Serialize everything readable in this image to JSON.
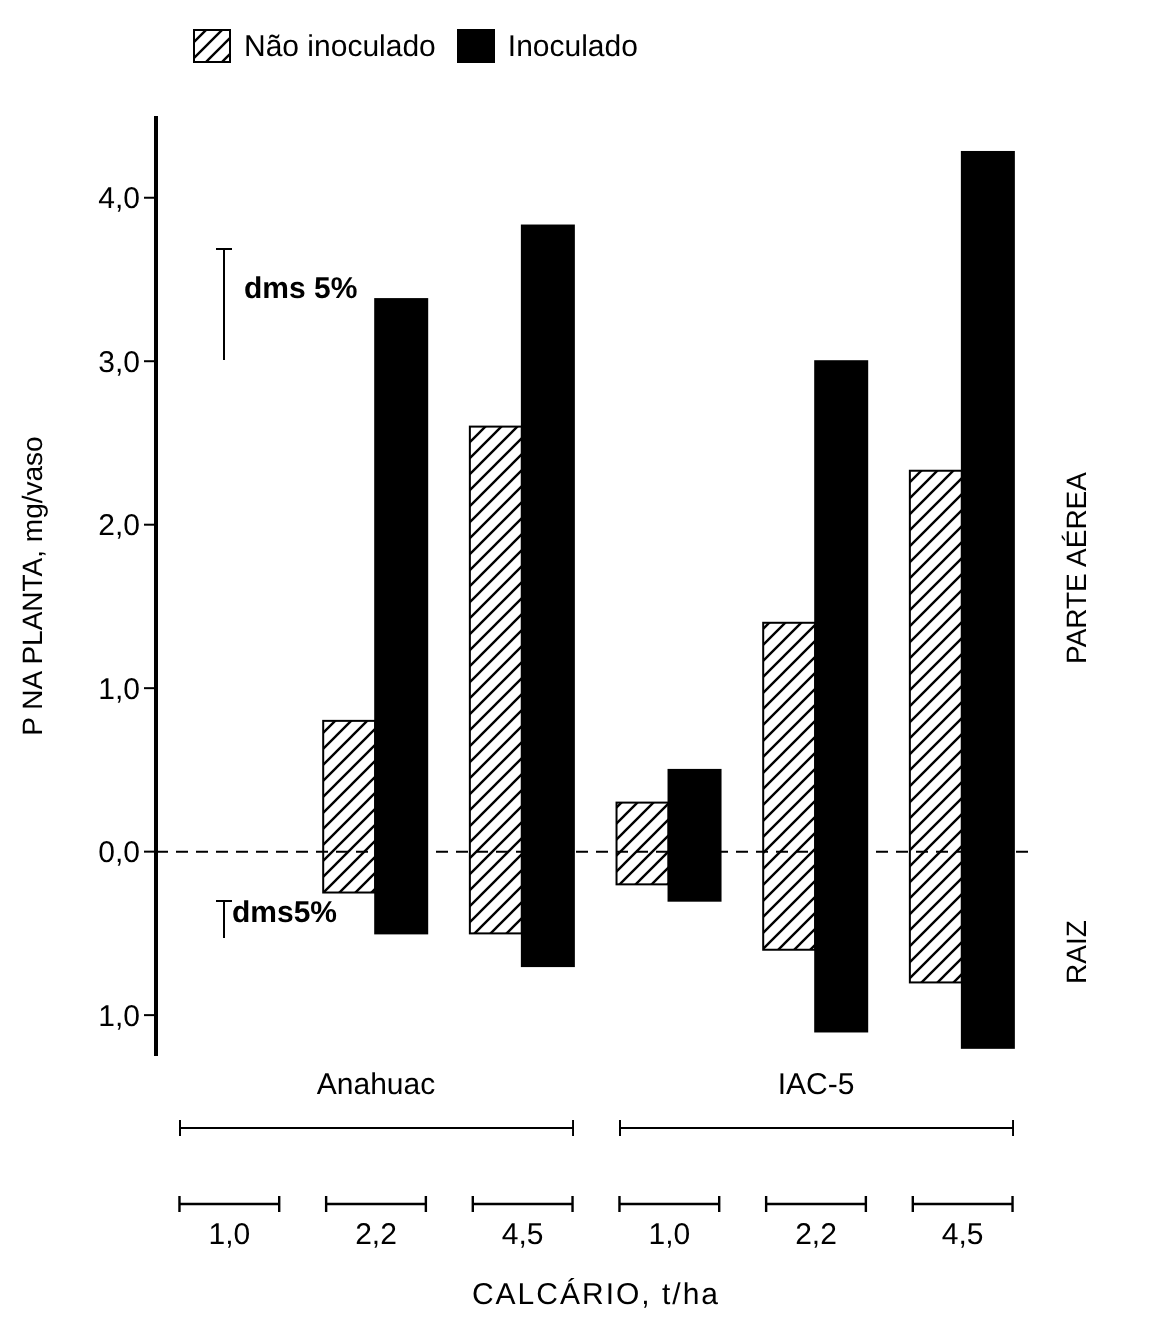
{
  "chart_data": {
    "type": "bar",
    "xlabel": "CALCÁRIO, t/ha",
    "ylabel": "P NA PLANTA, mg/vaso",
    "categories": [
      "1,0",
      "2,2",
      "4,5",
      "1,0",
      "2,2",
      "4,5"
    ],
    "series": [
      {
        "name": "Não inoculado",
        "color": "#ffffff",
        "base": [
          null,
          -0.25,
          -0.5,
          -0.2,
          -0.6,
          -0.8
        ],
        "values": [
          null,
          1.05,
          3.1,
          0.5,
          2.0,
          3.13
        ]
      },
      {
        "name": "Inoculado",
        "color": "#000000",
        "base": [
          null,
          -0.5,
          -0.7,
          -0.3,
          -1.1,
          -1.2
        ],
        "values": [
          null,
          3.88,
          4.53,
          0.8,
          4.1,
          5.48
        ]
      }
    ],
    "ylim": [
      -1.25,
      4.5
    ],
    "yticks": [
      {
        "value": 4,
        "label": "4,0"
      },
      {
        "value": 3,
        "label": "3,0"
      },
      {
        "value": 2,
        "label": "2,0"
      },
      {
        "value": 1,
        "label": "1,0"
      },
      {
        "value": 0,
        "label": "0,0"
      },
      {
        "value": -1,
        "label": "1,0"
      }
    ],
    "ref_lines": [
      {
        "axis": "y",
        "value": 0,
        "line_style": "dashed",
        "color": "#000000"
      }
    ],
    "annotations": [
      "dms 5%",
      "dms5%",
      "Anahuac",
      "IAC-5",
      "PARTE AÉREA",
      "RAIZ"
    ],
    "legend": "top"
  }
}
